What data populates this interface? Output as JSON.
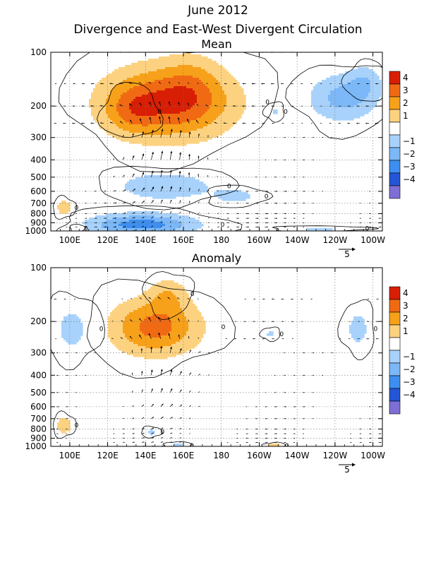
{
  "figure": {
    "title": "June 2012",
    "subtitle": "Divergence and East-West Divergent Circulation"
  },
  "colorbar": {
    "levels": [
      "4",
      "3",
      "2",
      "1",
      "−1",
      "−2",
      "−3",
      "−4"
    ],
    "colors": [
      "#d81e05",
      "#f06a14",
      "#f7a11a",
      "#fcd281",
      "#ffffff",
      "#a8d2fb",
      "#7cb8f7",
      "#3d8ef0",
      "#2455d6",
      "#7e6fd6"
    ]
  },
  "chart_data": [
    {
      "type": "heatmap",
      "panel": "Mean",
      "title": "Mean",
      "x_ticks": [
        "100E",
        "120E",
        "140E",
        "160E",
        "180",
        "160W",
        "140W",
        "120W",
        "100W"
      ],
      "x_tick_values": [
        100,
        120,
        140,
        160,
        180,
        200,
        220,
        240,
        260
      ],
      "xlim": [
        90,
        265
      ],
      "y_ticks": [
        "100",
        "200",
        "300",
        "400",
        "500",
        "600",
        "700",
        "800",
        "900",
        "1000"
      ],
      "y_tick_values": [
        100,
        200,
        300,
        400,
        500,
        600,
        700,
        800,
        900,
        1000
      ],
      "ylim": [
        1000,
        100
      ],
      "y_scale": "log",
      "grid": true,
      "vector_reference": "5",
      "contour_label": "0",
      "blobs": [
        {
          "lon": 152,
          "p": 190,
          "rx": 24,
          "ry": 0.33,
          "value": 4.2
        },
        {
          "lon": 132,
          "p": 215,
          "rx": 9,
          "ry": 0.2,
          "value": 1.2
        },
        {
          "lon": 165,
          "p": 145,
          "rx": 10,
          "ry": 0.3,
          "value": 0.8
        },
        {
          "lon": 138,
          "p": 920,
          "rx": 20,
          "ry": 0.1,
          "value": -3.6
        },
        {
          "lon": 150,
          "p": 560,
          "rx": 18,
          "ry": 0.13,
          "value": -2.0
        },
        {
          "lon": 188,
          "p": 640,
          "rx": 9,
          "ry": 0.08,
          "value": -1.3
        },
        {
          "lon": 244,
          "p": 180,
          "rx": 13,
          "ry": 0.22,
          "value": -2.4
        },
        {
          "lon": 256,
          "p": 145,
          "rx": 6,
          "ry": 0.15,
          "value": -1.3
        },
        {
          "lon": 208,
          "p": 215,
          "rx": 3,
          "ry": 0.07,
          "value": -1.3
        },
        {
          "lon": 97,
          "p": 740,
          "rx": 3,
          "ry": 0.07,
          "value": 2.0
        },
        {
          "lon": 104,
          "p": 970,
          "rx": 2,
          "ry": 0.03,
          "value": 1.6
        },
        {
          "lon": 232,
          "p": 970,
          "rx": 15,
          "ry": 0.02,
          "value": -1.2
        }
      ]
    },
    {
      "type": "heatmap",
      "panel": "Anomaly",
      "title": "Anomaly",
      "x_ticks": [
        "100E",
        "120E",
        "140E",
        "160E",
        "180",
        "160W",
        "140W",
        "120W",
        "100W"
      ],
      "x_tick_values": [
        100,
        120,
        140,
        160,
        180,
        200,
        220,
        240,
        260
      ],
      "xlim": [
        90,
        265
      ],
      "y_ticks": [
        "100",
        "200",
        "300",
        "400",
        "500",
        "600",
        "700",
        "800",
        "900",
        "1000"
      ],
      "y_tick_values": [
        100,
        200,
        300,
        400,
        500,
        600,
        700,
        800,
        900,
        1000
      ],
      "ylim": [
        1000,
        100
      ],
      "y_scale": "log",
      "grid": true,
      "vector_reference": "5",
      "contour_label": "0",
      "blobs": [
        {
          "lon": 145,
          "p": 215,
          "rx": 17,
          "ry": 0.26,
          "value": 3.4
        },
        {
          "lon": 152,
          "p": 140,
          "rx": 7,
          "ry": 0.16,
          "value": 1.4
        },
        {
          "lon": 102,
          "p": 220,
          "rx": 8,
          "ry": 0.25,
          "value": -1.5
        },
        {
          "lon": 97,
          "p": 760,
          "rx": 3,
          "ry": 0.08,
          "value": 2.0
        },
        {
          "lon": 208,
          "p": 990,
          "rx": 3,
          "ry": 0.02,
          "value": 2.0
        },
        {
          "lon": 252,
          "p": 220,
          "rx": 5,
          "ry": 0.2,
          "value": -1.4
        },
        {
          "lon": 206,
          "p": 235,
          "rx": 3,
          "ry": 0.05,
          "value": -1.2
        },
        {
          "lon": 143,
          "p": 830,
          "rx": 3,
          "ry": 0.04,
          "value": -1.3
        },
        {
          "lon": 157,
          "p": 990,
          "rx": 4,
          "ry": 0.03,
          "value": -1.2
        }
      ]
    }
  ]
}
